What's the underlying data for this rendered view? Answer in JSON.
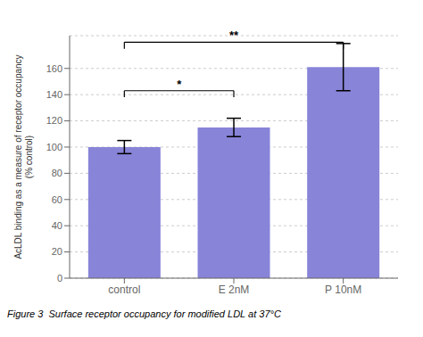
{
  "chart_data": {
    "type": "bar",
    "categories": [
      "control",
      "E 2nM",
      "P 10nM"
    ],
    "values": [
      100,
      115,
      161
    ],
    "errors": [
      5,
      7,
      18
    ],
    "color": "#8884d8",
    "ylabel": [
      "AcLDL binding as a measure of receptor occupancy",
      "(% control)"
    ],
    "ylim": [
      0,
      185
    ],
    "yticks": [
      0,
      20,
      40,
      60,
      80,
      100,
      120,
      140,
      160
    ],
    "annotations": [
      {
        "x1": 0,
        "x2": 1,
        "y": 143,
        "drop": 5,
        "label": "*"
      },
      {
        "x1": 0,
        "x2": 2,
        "y": 180,
        "drop": 5,
        "label": "**"
      }
    ],
    "caption": "Figure 3  Surface receptor occupancy for modified LDL at 37°C"
  }
}
